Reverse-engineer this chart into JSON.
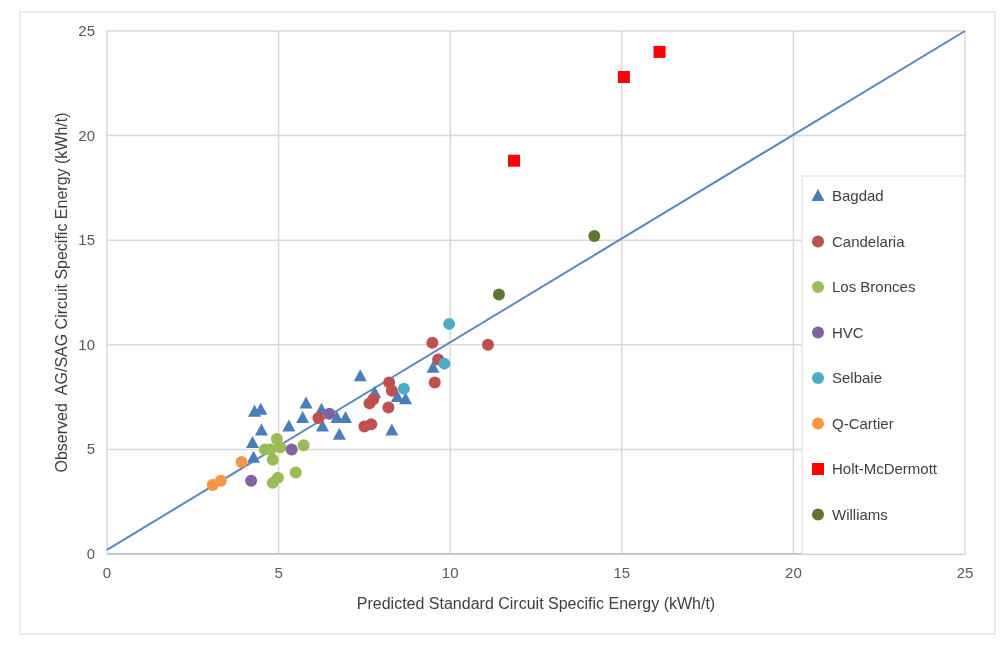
{
  "chart_data": {
    "type": "scatter",
    "xlabel": "Predicted Standard Circuit Specific Energy (kWh/t)",
    "ylabel": "Observed  AG/SAG Circuit Specific Energy (kWh/t)",
    "xlim": [
      0,
      25
    ],
    "xticks": [
      0,
      5,
      10,
      15,
      20,
      25
    ],
    "ylim": [
      0,
      25
    ],
    "yticks": [
      0,
      5,
      10,
      15,
      20,
      25
    ],
    "grid": true,
    "legend": "bottom right",
    "series": [
      {
        "name": "Bagdad",
        "color": "#4a7ebb",
        "marker": "triangle",
        "x": [
          4.3,
          4.48,
          4.24,
          4.5,
          4.27,
          5.3,
          5.7,
          5.8,
          6.25,
          6.28,
          6.7,
          6.77,
          6.95,
          7.38,
          7.8,
          8.3,
          8.46,
          8.7,
          9.5
        ],
        "values": [
          6.8,
          6.9,
          5.3,
          5.9,
          4.6,
          6.1,
          6.5,
          7.2,
          6.9,
          6.1,
          6.5,
          5.7,
          6.5,
          8.5,
          7.7,
          5.9,
          7.5,
          7.4,
          8.9
        ]
      },
      {
        "name": "Candelaria",
        "color": "#c0504d",
        "marker": "circle",
        "x": [
          6.16,
          7.65,
          7.76,
          7.5,
          7.7,
          8.2,
          8.22,
          8.3,
          9.48,
          9.55,
          9.65,
          11.1
        ],
        "values": [
          6.5,
          7.2,
          7.4,
          6.1,
          6.2,
          7.0,
          8.2,
          7.8,
          10.1,
          8.2,
          9.3,
          10.0
        ]
      },
      {
        "name": "Los Bronces",
        "color": "#9bbb59",
        "marker": "circle",
        "x": [
          4.6,
          4.95,
          4.83,
          4.83,
          4.98,
          5.5,
          5.73,
          4.77,
          5.05
        ],
        "values": [
          5.0,
          5.5,
          4.5,
          3.4,
          3.65,
          3.9,
          5.2,
          5.0,
          5.1
        ]
      },
      {
        "name": "HVC",
        "color": "#8064a2",
        "marker": "circle",
        "x": [
          4.2,
          5.38,
          6.48
        ],
        "values": [
          3.5,
          5.0,
          6.7
        ]
      },
      {
        "name": "Selbaie",
        "color": "#4bacc6",
        "marker": "circle",
        "x": [
          9.97,
          8.65,
          9.83
        ],
        "values": [
          11.0,
          7.9,
          9.1
        ]
      },
      {
        "name": "Q-Cartier",
        "color": "#f79646",
        "marker": "circle",
        "x": [
          3.92,
          3.08,
          3.32
        ],
        "values": [
          4.4,
          3.3,
          3.5
        ]
      },
      {
        "name": "Holt-McDermott",
        "color": "#ff0000",
        "marker": "square",
        "x": [
          11.86,
          15.06,
          16.1
        ],
        "values": [
          18.8,
          22.8,
          24.0
        ]
      },
      {
        "name": "Williams",
        "color": "#5f7530",
        "marker": "circle",
        "x": [
          11.42,
          14.2
        ],
        "values": [
          12.4,
          15.2
        ]
      },
      {
        "type": "line",
        "color": "#5b86c0",
        "marker": "none",
        "x": [
          0,
          25
        ],
        "values": [
          0.2,
          25
        ]
      }
    ]
  }
}
